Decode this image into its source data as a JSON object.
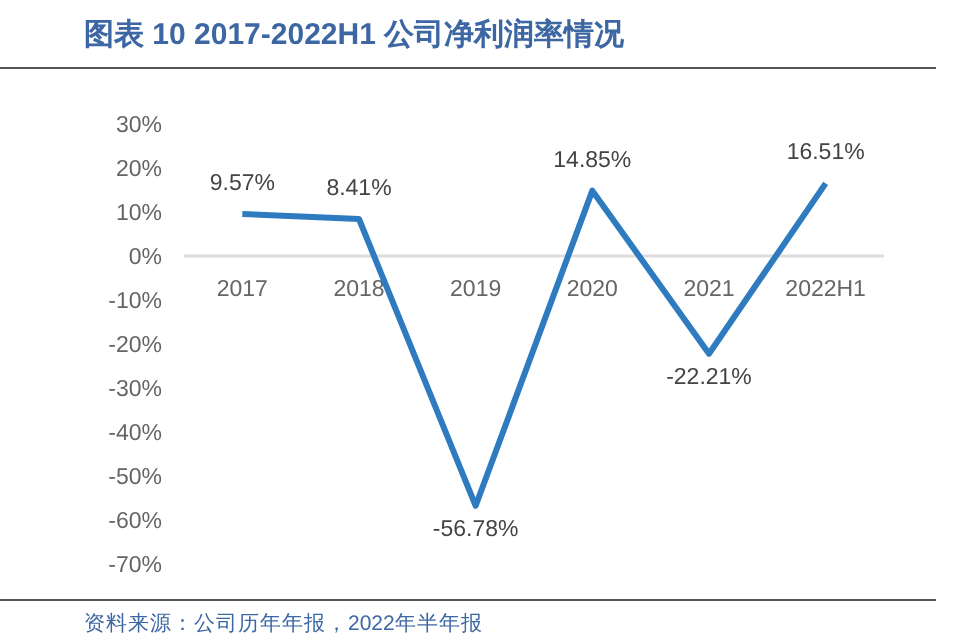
{
  "chart_data": {
    "type": "line",
    "title": "图表 10 2017-2022H1 公司净利润率情况",
    "categories": [
      "2017",
      "2018",
      "2019",
      "2020",
      "2021",
      "2022H1"
    ],
    "series": [
      {
        "color": "#2e7bbf",
        "values": [
          9.57,
          8.41,
          -56.78,
          14.85,
          -22.21,
          16.51
        ]
      }
    ],
    "value_labels": [
      "9.57%",
      "8.41%",
      "-56.78%",
      "14.85%",
      "-22.21%",
      "16.51%"
    ],
    "ylim": [
      -70,
      30
    ],
    "yticks": [
      {
        "value": 30,
        "label": "30%"
      },
      {
        "value": 20,
        "label": "20%"
      },
      {
        "value": 10,
        "label": "10%"
      },
      {
        "value": 0,
        "label": "0%"
      },
      {
        "value": -10,
        "label": "-10%"
      },
      {
        "value": -20,
        "label": "-20%"
      },
      {
        "value": -30,
        "label": "-30%"
      },
      {
        "value": -40,
        "label": "-40%"
      },
      {
        "value": -50,
        "label": "-50%"
      },
      {
        "value": -60,
        "label": "-60%"
      },
      {
        "value": -70,
        "label": "-70%"
      }
    ],
    "grid": false,
    "marker": "none",
    "line_style": "solid",
    "annotations": [
      "资料来源：公司历年年报，2022年半年报"
    ]
  }
}
